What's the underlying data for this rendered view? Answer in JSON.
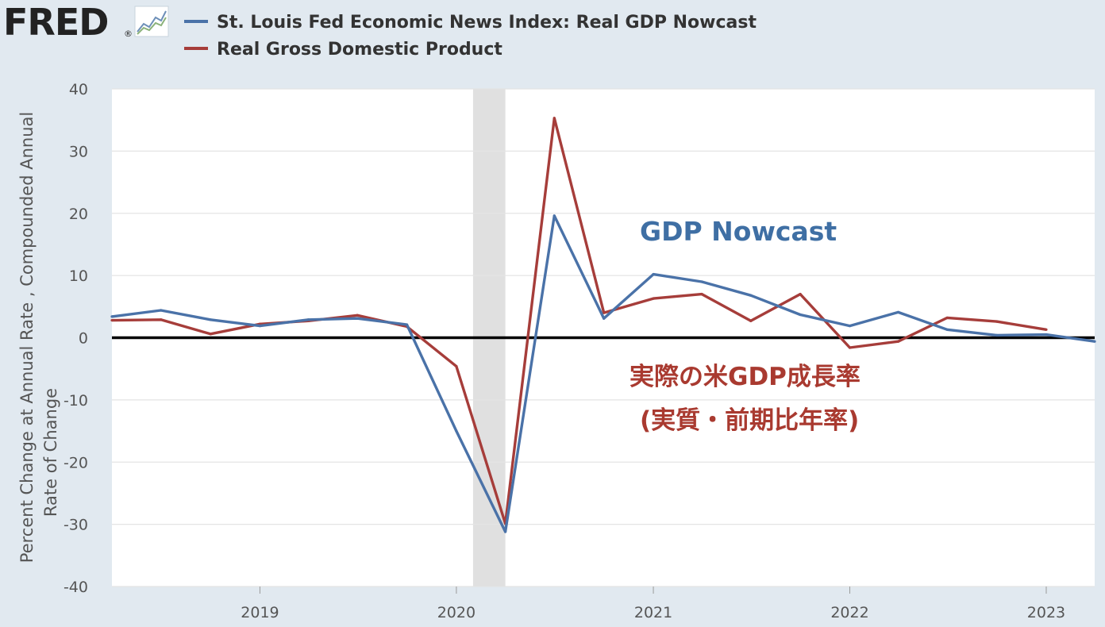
{
  "header": {
    "logo_text": "FRED",
    "logo_mark": "®",
    "logo_icon": "trend-chart-icon"
  },
  "chart_data": {
    "type": "line",
    "ylabel_lines": [
      "Percent Change at Annual Rate , Compounded Annual",
      "Rate of Change"
    ],
    "xlabel": "",
    "ylim": [
      -40,
      40
    ],
    "yticks": [
      -40,
      -30,
      -20,
      -10,
      0,
      10,
      20,
      30,
      40
    ],
    "xlim": [
      "2018-04-01",
      "2023-04-01"
    ],
    "xticks": [
      {
        "label": "2019",
        "date": "2019-01-01"
      },
      {
        "label": "2020",
        "date": "2020-01-01"
      },
      {
        "label": "2021",
        "date": "2021-01-01"
      },
      {
        "label": "2022",
        "date": "2022-01-01"
      },
      {
        "label": "2023",
        "date": "2023-01-01"
      }
    ],
    "grid": true,
    "legend_position": "top-left",
    "zero_line": true,
    "recession": {
      "start": "2020-02-01",
      "end": "2020-04-01",
      "color": "#e0e0e0"
    },
    "series": [
      {
        "name": "St. Louis Fed Economic News Index: Real GDP Nowcast",
        "color": "#4a72a8",
        "points": [
          [
            "2018-04-01",
            3.4
          ],
          [
            "2018-07-01",
            4.4
          ],
          [
            "2018-10-01",
            2.9
          ],
          [
            "2019-01-01",
            1.9
          ],
          [
            "2019-04-01",
            2.9
          ],
          [
            "2019-07-01",
            3.1
          ],
          [
            "2019-10-01",
            2.1
          ],
          [
            "2020-01-01",
            -15.0
          ],
          [
            "2020-04-01",
            -31.2
          ],
          [
            "2020-07-01",
            19.6
          ],
          [
            "2020-10-01",
            3.1
          ],
          [
            "2021-01-01",
            10.2
          ],
          [
            "2021-04-01",
            9.0
          ],
          [
            "2021-07-01",
            6.8
          ],
          [
            "2021-10-01",
            3.7
          ],
          [
            "2022-01-01",
            1.9
          ],
          [
            "2022-04-01",
            4.1
          ],
          [
            "2022-07-01",
            1.3
          ],
          [
            "2022-10-01",
            0.4
          ],
          [
            "2023-01-01",
            0.5
          ],
          [
            "2023-04-01",
            -0.6
          ]
        ]
      },
      {
        "name": "Real Gross Domestic Product",
        "color": "#a63d3a",
        "points": [
          [
            "2018-04-01",
            2.8
          ],
          [
            "2018-07-01",
            2.9
          ],
          [
            "2018-10-01",
            0.6
          ],
          [
            "2019-01-01",
            2.2
          ],
          [
            "2019-04-01",
            2.7
          ],
          [
            "2019-07-01",
            3.6
          ],
          [
            "2019-10-01",
            1.8
          ],
          [
            "2020-01-01",
            -4.6
          ],
          [
            "2020-04-01",
            -29.9
          ],
          [
            "2020-07-01",
            35.3
          ],
          [
            "2020-10-01",
            4.0
          ],
          [
            "2021-01-01",
            6.3
          ],
          [
            "2021-04-01",
            7.0
          ],
          [
            "2021-07-01",
            2.7
          ],
          [
            "2021-10-01",
            7.0
          ],
          [
            "2022-01-01",
            -1.6
          ],
          [
            "2022-04-01",
            -0.6
          ],
          [
            "2022-07-01",
            3.2
          ],
          [
            "2022-10-01",
            2.6
          ],
          [
            "2023-01-01",
            1.3
          ]
        ]
      }
    ],
    "annotations": [
      {
        "text": "GDP Nowcast",
        "color": "#3f6fa4"
      },
      {
        "text": "実際の米GDP成長率",
        "color": "#a93a30"
      },
      {
        "text": "(実質・前期比年率)",
        "color": "#a93a30"
      }
    ]
  }
}
